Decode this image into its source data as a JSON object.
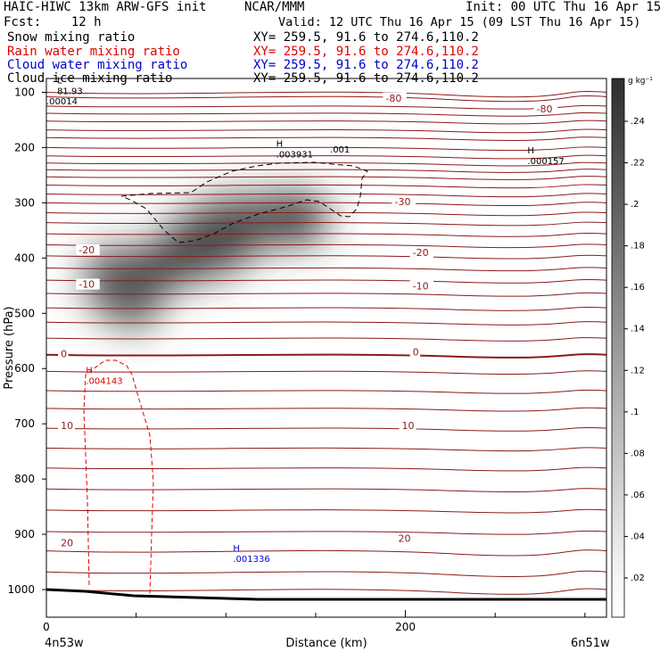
{
  "header": {
    "model": "HAIC-HIWC 13km ARW-GFS init",
    "org": "NCAR/MMM",
    "init": "Init: 00 UTC Thu 16 Apr 15",
    "fcst": "Fcst:    12 h",
    "valid": "Valid: 12 UTC Thu 16 Apr 15 (09 LST Thu 16 Apr 15)"
  },
  "fields": [
    {
      "name": "Snow mixing ratio",
      "xy": "XY= 259.5, 91.6 to 274.6,110.2",
      "color": "#000000"
    },
    {
      "name": "Rain water mixing ratio",
      "xy": "XY= 259.5, 91.6 to 274.6,110.2",
      "color": "#e00000"
    },
    {
      "name": "Cloud water mixing ratio",
      "xy": "XY= 259.5, 91.6 to 274.6,110.2",
      "color": "#0000cc"
    },
    {
      "name": "Cloud ice mixing ratio",
      "xy": "XY= 259.5, 91.6 to 274.6,110.2",
      "color": "#000000"
    }
  ],
  "chart_data": {
    "type": "cross-section",
    "xlabel": "Distance (km)",
    "ylabel": "Pressure (hPa)",
    "xlim": [
      0,
      312
    ],
    "ylim": [
      1050,
      75
    ],
    "x_ticks": [
      0,
      200
    ],
    "x_endpoints": [
      "4n53w",
      "6n51w"
    ],
    "y_ticks": [
      100,
      200,
      300,
      400,
      500,
      600,
      700,
      800,
      900,
      1000
    ],
    "colorbar": {
      "unit": "g kg⁻¹",
      "ticks": [
        ".24",
        ".22",
        ".2",
        ".18",
        ".16",
        ".14",
        ".12",
        ".1",
        ".08",
        ".06",
        ".04",
        ".02"
      ]
    },
    "temperature_labels": [
      {
        "text": "-80",
        "x": 189,
        "p": 115
      },
      {
        "text": "-80",
        "x": 273,
        "p": 135
      },
      {
        "text": "-30",
        "x": 194,
        "p": 303
      },
      {
        "text": "-20",
        "x": 18,
        "p": 390
      },
      {
        "text": "-20",
        "x": 204,
        "p": 395
      },
      {
        "text": "-10",
        "x": 18,
        "p": 452
      },
      {
        "text": "-10",
        "x": 204,
        "p": 455
      },
      {
        "text": "0",
        "x": 8,
        "p": 578
      },
      {
        "text": "0",
        "x": 204,
        "p": 575
      },
      {
        "text": "10",
        "x": 8,
        "p": 708
      },
      {
        "text": "10",
        "x": 198,
        "p": 708
      },
      {
        "text": "20",
        "x": 8,
        "p": 920
      },
      {
        "text": "20",
        "x": 196,
        "p": 912
      }
    ],
    "extrema": [
      {
        "text": "H",
        "value": ".003931",
        "x": 128,
        "p": 218,
        "color": "#000000"
      },
      {
        "text": "H",
        "value": ".000157",
        "x": 268,
        "p": 230,
        "color": "#000000"
      },
      {
        "text": "H",
        "value": ".004143",
        "x": 22,
        "p": 628,
        "color": "#e00000"
      },
      {
        "text": "H",
        "value": ".001336",
        "x": 104,
        "p": 950,
        "color": "#0000cc"
      },
      {
        "text": "L",
        "value": "81.93",
        "x": 6,
        "p": 103,
        "color": "#000000"
      },
      {
        "text": "",
        "value": ".00014",
        "x": 0,
        "p": 122,
        "color": "#000000"
      },
      {
        "text": "",
        "value": ".001",
        "x": 158,
        "p": 209,
        "color": "#000000"
      }
    ]
  }
}
